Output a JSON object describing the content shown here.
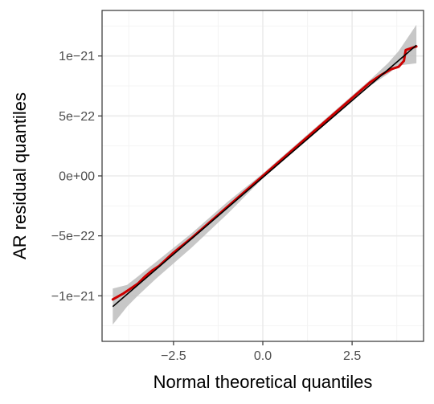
{
  "chart_data": {
    "type": "line",
    "title": "",
    "xlabel": "Normal theoretical quantiles",
    "ylabel": "AR residual quantiles",
    "xlim": [
      -4.5,
      4.5
    ],
    "ylim": [
      -1.38e-21,
      1.38e-21
    ],
    "x_ticks": [
      -2.5,
      0.0,
      2.5
    ],
    "x_tick_labels": [
      "−2.5",
      "0.0",
      "2.5"
    ],
    "y_ticks": [
      -1e-21,
      -5e-22,
      0,
      5e-22,
      1e-21
    ],
    "y_tick_labels": [
      "−1e−21",
      "−5e−22",
      "0e+00",
      "5e−22",
      "1e−21"
    ],
    "grid": true,
    "colors": {
      "reference_line": "#000000",
      "confidence_band": "#bdbdbd",
      "sample_quantiles": "#cc0000",
      "panel_border": "#333333",
      "grid_major": "#ebebeb",
      "grid_minor": "#f4f4f4"
    },
    "series": [
      {
        "role": "reference_line",
        "x": [
          -4.2,
          4.3
        ],
        "y": [
          -1.09e-21,
          1.09e-21
        ]
      },
      {
        "role": "confidence_band",
        "x": [
          -4.2,
          -3.8,
          -3.5,
          -3.0,
          -2.5,
          -2.0,
          -1.0,
          0.0,
          1.0,
          2.0,
          2.5,
          3.0,
          3.5,
          3.8,
          4.3
        ],
        "lower": [
          -1.24e-21,
          -1.09e-21,
          -1e-21,
          -8.6e-22,
          -7.3e-22,
          -6e-22,
          -3.2e-22,
          -2e-23,
          2.4e-22,
          5e-22,
          6.3e-22,
          7.5e-22,
          8.5e-22,
          9.2e-22,
          9.4e-22
        ],
        "upper": [
          -9.4e-22,
          -9.1e-22,
          -8.4e-22,
          -7.2e-22,
          -6e-22,
          -4.8e-22,
          -2.2e-22,
          2e-23,
          2.8e-22,
          5.4e-22,
          6.7e-22,
          8e-22,
          9.4e-22,
          1.04e-21,
          1.26e-21
        ]
      },
      {
        "role": "sample_quantiles",
        "x": [
          -4.2,
          -3.9,
          -3.7,
          -3.5,
          -3.3,
          -3.1,
          -2.9,
          -2.5,
          -2.0,
          -1.0,
          0.0,
          1.0,
          2.0,
          2.5,
          3.0,
          3.3,
          3.6,
          3.8,
          3.95,
          4.0,
          4.3
        ],
        "y": [
          -1.03e-21,
          -9.8e-22,
          -9.4e-22,
          -9e-22,
          -8.4e-22,
          -7.9e-22,
          -7.5e-22,
          -6.4e-22,
          -5.2e-22,
          -2.6e-22,
          0.0,
          2.6e-22,
          5.2e-22,
          6.5e-22,
          7.8e-22,
          8.4e-22,
          8.9e-22,
          9.1e-22,
          9.6e-22,
          1.05e-21,
          1.08e-21
        ]
      }
    ]
  }
}
